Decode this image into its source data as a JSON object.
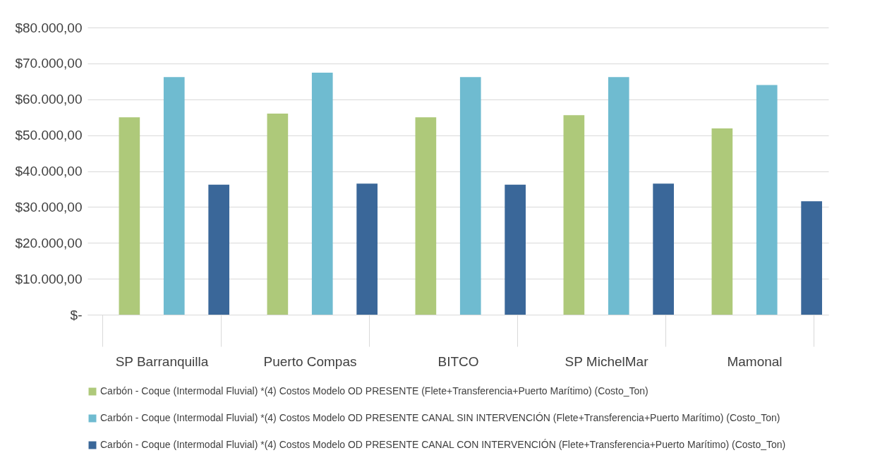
{
  "chart_data": {
    "type": "bar",
    "categories": [
      "SP Barranquilla",
      "Puerto Compas",
      "BITCO",
      "SP MichelMar",
      "Mamonal"
    ],
    "series": [
      {
        "name": "Carbón - Coque (Intermodal Fluvial) *(4) Costos Modelo OD PRESENTE (Flete+Transferencia+Puerto Marítimo) (Costo_Ton)",
        "color": "#aec97a",
        "values": [
          55000,
          56000,
          55000,
          55600,
          51900
        ]
      },
      {
        "name": "Carbón - Coque (Intermodal Fluvial) *(4) Costos Modelo OD PRESENTE CANAL SIN INTERVENCIÓN (Flete+Transferencia+Puerto Marítimo) (Costo_Ton)",
        "color": "#6fbbd0",
        "values": [
          66200,
          67400,
          66200,
          66200,
          64000
        ]
      },
      {
        "name": "Carbón - Coque (Intermodal Fluvial) *(4) Costos Modelo OD PRESENTE CANAL CON INTERVENCIÓN (Flete+Transferencia+Puerto Marítimo) (Costo_Ton)",
        "color": "#3a6799",
        "values": [
          36200,
          36500,
          36200,
          36500,
          31600
        ]
      }
    ],
    "ylim": [
      0,
      80000
    ],
    "yticks": [
      {
        "value": 0,
        "label": "$-"
      },
      {
        "value": 10000,
        "label": "$10.000,00"
      },
      {
        "value": 20000,
        "label": "$20.000,00"
      },
      {
        "value": 30000,
        "label": "$30.000,00"
      },
      {
        "value": 40000,
        "label": "$40.000,00"
      },
      {
        "value": 50000,
        "label": "$50.000,00"
      },
      {
        "value": 60000,
        "label": "$60.000,00"
      },
      {
        "value": 70000,
        "label": "$70.000,00"
      },
      {
        "value": 80000,
        "label": "$80.000,00"
      }
    ],
    "grid": "y",
    "legend": "bottom"
  }
}
